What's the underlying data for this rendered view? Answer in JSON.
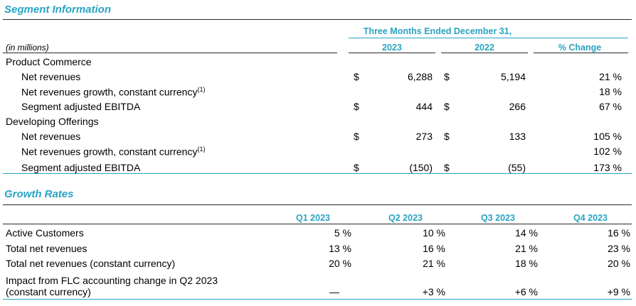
{
  "segment": {
    "title": "Segment Information",
    "period_header": "Three Months Ended December 31,",
    "units_label": "(in millions)",
    "col_2023": "2023",
    "col_2022": "2022",
    "col_change": "% Change",
    "groups": [
      {
        "name": "Product Commerce",
        "rows": [
          {
            "label": "Net revenues",
            "sup": "",
            "cur1": "$",
            "v2023": "6,288",
            "cur2": "$",
            "v2022": "5,194",
            "change": "21 %"
          },
          {
            "label": "Net revenues growth, constant currency",
            "sup": "(1)",
            "cur1": "",
            "v2023": "",
            "cur2": "",
            "v2022": "",
            "change": "18 %"
          },
          {
            "label": "Segment adjusted EBITDA",
            "sup": "",
            "cur1": "$",
            "v2023": "444",
            "cur2": "$",
            "v2022": "266",
            "change": "67 %"
          }
        ]
      },
      {
        "name": "Developing Offerings",
        "rows": [
          {
            "label": "Net revenues",
            "sup": "",
            "cur1": "$",
            "v2023": "273",
            "cur2": "$",
            "v2022": "133",
            "change": "105 %"
          },
          {
            "label": "Net revenues growth, constant currency",
            "sup": "(1)",
            "cur1": "",
            "v2023": "",
            "cur2": "",
            "v2022": "",
            "change": "102 %"
          },
          {
            "label": "Segment adjusted EBITDA",
            "sup": "",
            "cur1": "$",
            "v2023": "(150)",
            "cur2": "$",
            "v2022": "(55)",
            "change": "173 %"
          }
        ]
      }
    ]
  },
  "growth": {
    "title": "Growth Rates",
    "columns": [
      "Q1 2023",
      "Q2 2023",
      "Q3 2023",
      "Q4 2023"
    ],
    "rows": [
      {
        "label": "Active Customers",
        "label2": "",
        "values": [
          "5 %",
          "10 %",
          "14 %",
          "16 %"
        ]
      },
      {
        "label": "Total net revenues",
        "label2": "",
        "values": [
          "13 %",
          "16 %",
          "21 %",
          "23 %"
        ]
      },
      {
        "label": "Total net revenues (constant currency)",
        "label2": "",
        "values": [
          "20 %",
          "21 %",
          "18 %",
          "20 %"
        ]
      },
      {
        "label": "Impact from FLC accounting change in Q2 2023",
        "label2": "(constant currency)",
        "values": [
          "—",
          "+3 %",
          "+6 %",
          "+9 %"
        ]
      }
    ]
  }
}
